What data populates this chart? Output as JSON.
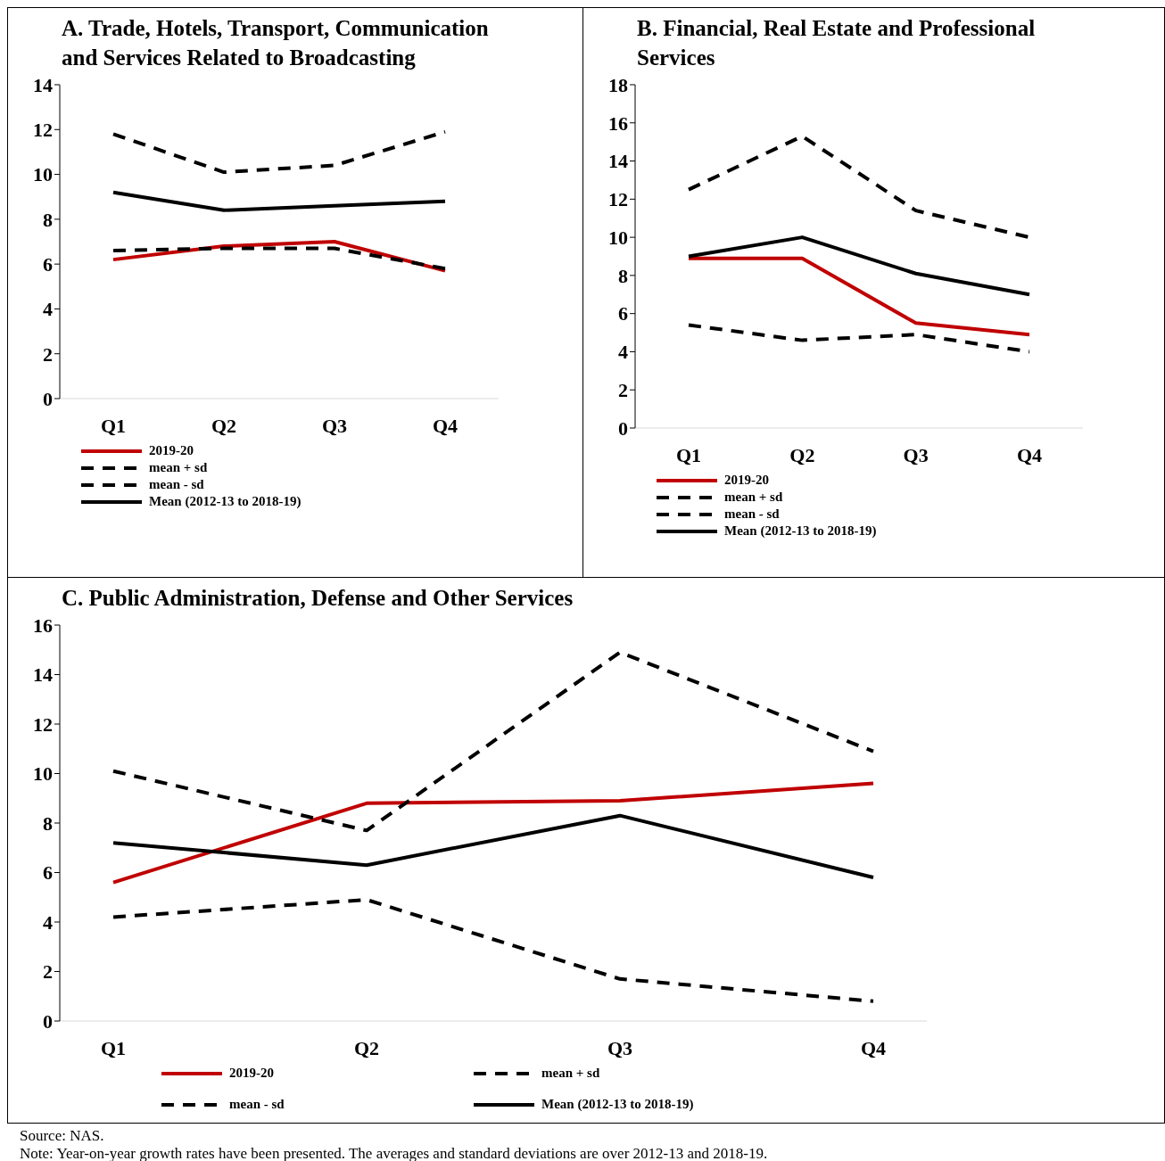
{
  "chart_data": [
    {
      "type": "line",
      "title": "A.  Trade, Hotels, Transport, Communication and Services Related to Broadcasting",
      "categories": [
        "Q1",
        "Q2",
        "Q3",
        "Q4"
      ],
      "ylim": [
        0,
        14
      ],
      "yticks": [
        0,
        2,
        4,
        6,
        8,
        10,
        12,
        14
      ],
      "legend": "bottom",
      "series": [
        {
          "name": "2019-20",
          "color": "#c00000",
          "line_style": "solid",
          "values": [
            6.2,
            6.8,
            7.0,
            5.7
          ]
        },
        {
          "name": "mean + sd",
          "color": "#000000",
          "line_style": "dashed",
          "values": [
            11.8,
            10.1,
            10.4,
            11.9
          ]
        },
        {
          "name": "mean - sd",
          "color": "#000000",
          "line_style": "dashed",
          "values": [
            6.6,
            6.7,
            6.7,
            5.8
          ]
        },
        {
          "name": "Mean (2012-13 to 2018-19)",
          "color": "#000000",
          "line_style": "solid",
          "values": [
            9.2,
            8.4,
            8.6,
            8.8
          ]
        }
      ]
    },
    {
      "type": "line",
      "title": "B.  Financial, Real Estate and Professional Services",
      "categories": [
        "Q1",
        "Q2",
        "Q3",
        "Q4"
      ],
      "ylim": [
        0,
        18
      ],
      "yticks": [
        0,
        2,
        4,
        6,
        8,
        10,
        12,
        14,
        16,
        18
      ],
      "legend": "bottom",
      "series": [
        {
          "name": "2019-20",
          "color": "#c00000",
          "line_style": "solid",
          "values": [
            8.9,
            8.9,
            5.5,
            4.9
          ]
        },
        {
          "name": "mean + sd",
          "color": "#000000",
          "line_style": "dashed",
          "values": [
            12.5,
            15.3,
            11.4,
            10.0
          ]
        },
        {
          "name": "mean - sd",
          "color": "#000000",
          "line_style": "dashed",
          "values": [
            5.4,
            4.6,
            4.9,
            4.0
          ]
        },
        {
          "name": "Mean (2012-13 to 2018-19)",
          "color": "#000000",
          "line_style": "solid",
          "values": [
            9.0,
            10.0,
            8.1,
            7.0
          ]
        }
      ]
    },
    {
      "type": "line",
      "title": "C.  Public Administration, Defense and Other Services",
      "categories": [
        "Q1",
        "Q2",
        "Q3",
        "Q4"
      ],
      "ylim": [
        0,
        16
      ],
      "yticks": [
        0,
        2,
        4,
        6,
        8,
        10,
        12,
        14,
        16
      ],
      "legend": "bottom",
      "annotations": [
        "Source: NAS.",
        "Note: Year-on-year growth rates have been presented. The averages and standard deviations are over 2012-13 and 2018-19."
      ],
      "series": [
        {
          "name": "2019-20",
          "color": "#c00000",
          "line_style": "solid",
          "values": [
            5.6,
            8.8,
            8.9,
            9.6
          ]
        },
        {
          "name": "mean + sd",
          "color": "#000000",
          "line_style": "dashed",
          "values": [
            10.1,
            7.7,
            14.9,
            10.9
          ]
        },
        {
          "name": "mean - sd",
          "color": "#000000",
          "line_style": "dashed",
          "values": [
            4.2,
            4.9,
            1.7,
            0.8
          ]
        },
        {
          "name": "Mean (2012-13 to 2018-19)",
          "color": "#000000",
          "line_style": "solid",
          "values": [
            7.2,
            6.3,
            8.3,
            5.8
          ]
        }
      ]
    }
  ]
}
